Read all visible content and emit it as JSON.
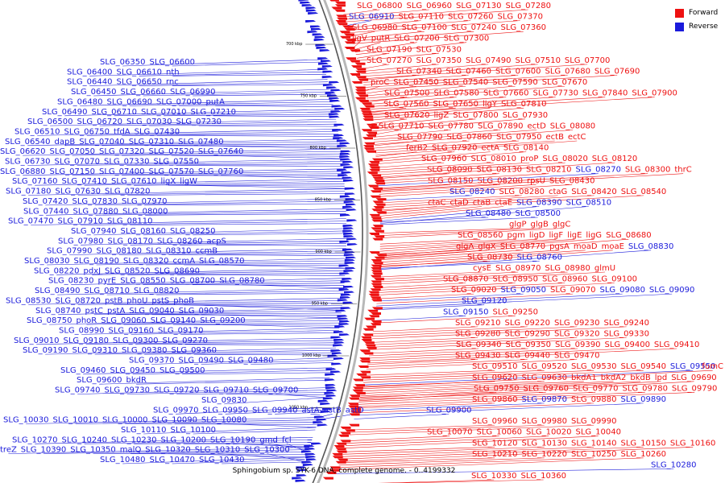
{
  "legend": {
    "forward_label": "Forward",
    "reverse_label": "Reverse",
    "forward_color": "#ee1111",
    "reverse_color": "#1a1adb"
  },
  "caption": "Sphingobium sp. SYK-6 DNA, complete genome. - 0..4199332",
  "ruler_ticks": [
    "700 kbp",
    "750 kbp",
    "800 kbp",
    "850 kbp",
    "900 kbp",
    "950 kbp",
    "1000 kbp",
    "1050 kbp"
  ],
  "left_rows": [
    [
      "SLG_06350",
      "SLG_06600"
    ],
    [
      "SLG_06400",
      "SLG_06610",
      "nth"
    ],
    [
      "SLG_06440",
      "SLG_06650",
      "rnc"
    ],
    [
      "SLG_06450",
      "SLG_06660",
      "SLG_06990"
    ],
    [
      "SLG_06480",
      "SLG_06690",
      "SLG_07000",
      "putA"
    ],
    [
      "SLG_06490",
      "SLG_06710",
      "SLG_07010",
      "SLG_07210"
    ],
    [
      "SLG_06500",
      "SLG_06720",
      "SLG_07030",
      "SLG_07230"
    ],
    [
      "SLG_06510",
      "SLG_06750",
      "tfdA",
      "SLG_07430"
    ],
    [
      "SLG_06540",
      "dapB",
      "SLG_07040",
      "SLG_07310",
      "SLG_07480"
    ],
    [
      "SLG_06620",
      "SLG_07050",
      "SLG_07320",
      "SLG_07520",
      "SLG_07640"
    ],
    [
      "SLG_06730",
      "SLG_07070",
      "SLG_07330",
      "SLG_07550"
    ],
    [
      "SLG_06880",
      "SLG_07150",
      "SLG_07400",
      "SLG_07570",
      "SLG_07760"
    ],
    [
      "SLG_07160",
      "SLG_07410",
      "SLG_07610",
      "ligX",
      "ligW"
    ],
    [
      "SLG_07180",
      "SLG_07630",
      "SLG_07820"
    ],
    [
      "SLG_07420",
      "SLG_07830",
      "SLG_07970"
    ],
    [
      "SLG_07440",
      "SLG_07880",
      "SLG_08000"
    ],
    [
      "SLG_07470",
      "SLG_07910",
      "SLG_08110"
    ],
    [
      "SLG_07940",
      "SLG_08160",
      "SLG_08250"
    ],
    [
      "SLG_07980",
      "SLG_08170",
      "SLG_08260",
      "acpS"
    ],
    [
      "SLG_07990",
      "SLG_08180",
      "SLG_08310",
      "ccmB"
    ],
    [
      "SLG_08030",
      "SLG_08190",
      "SLG_08320",
      "ccmA",
      "SLG_08570"
    ],
    [
      "SLG_08220",
      "pdxJ",
      "SLG_08520",
      "SLG_08690"
    ],
    [
      "SLG_08230",
      "pyrE",
      "SLG_08550",
      "SLG_08700",
      "SLG_08780"
    ],
    [
      "SLG_08490",
      "SLG_08710",
      "SLG_08820"
    ],
    [
      "SLG_08530",
      "SLG_08720",
      "pstB",
      "phoU",
      "pstS",
      "phoB"
    ],
    [
      "SLG_08740",
      "pstC",
      "pstA",
      "SLG_09040",
      "SLG_09030"
    ],
    [
      "SLG_08750",
      "phoR",
      "SLG_09060",
      "SLG_09140",
      "SLG_09200"
    ],
    [
      "SLG_08990",
      "SLG_09160",
      "SLG_09170"
    ],
    [
      "SLG_09010",
      "SLG_09180",
      "SLG_09300",
      "SLG_09270"
    ],
    [
      "SLG_09190",
      "SLG_09310",
      "SLG_09380",
      "SLG_09360"
    ],
    [
      "SLG_09370",
      "SLG_09490",
      "SLG_09480"
    ],
    [
      "SLG_09460",
      "SLG_09450",
      "SLG_09500"
    ],
    [
      "SLG_09600",
      "bkdR"
    ],
    [
      "SLG_09740",
      "SLG_09730",
      "SLG_09720",
      "SLG_09710",
      "SLG_09700"
    ],
    [
      "SLG_09830"
    ],
    [
      "SLG_09970",
      "SLG_09950",
      "SLG_09940",
      "astA",
      "astB",
      "astD"
    ],
    [
      "SLG_10030",
      "SLG_10010",
      "SLG_10000",
      "SLG_10090",
      "SLG_10080"
    ],
    [
      "SLG_10110",
      "SLG_10100"
    ],
    [
      "SLG_10270",
      "SLG_10240",
      "SLG_10230",
      "SLG_10200",
      "SLG_10190",
      "gmd",
      "fcl"
    ],
    [
      "treZ",
      "SLG_10390",
      "SLG_10350",
      "malQ",
      "SLG_10320",
      "SLG_10310",
      "SLG_10300"
    ],
    [
      "SLG_10480",
      "SLG_10470",
      "SLG_10430"
    ]
  ],
  "right_rows": [
    [
      "SLG_06800",
      "SLG_06960",
      "SLG_07130",
      "SLG_07280"
    ],
    [
      "SLG_06910",
      "SLG_07110",
      "SLG_07260",
      "SLG_07370"
    ],
    [
      "SLG_06980",
      "SLG_07100",
      "SLG_07240",
      "SLG_07360"
    ],
    [
      "ligV",
      "putR",
      "SLG_07200",
      "SLG_07300"
    ],
    [
      "SLG_07190",
      "SLG_07530"
    ],
    [
      "SLG_07270",
      "SLG_07350",
      "SLG_07490",
      "SLG_07510",
      "SLG_07700"
    ],
    [
      "SLG_07340",
      "SLG_07460",
      "SLG_07600",
      "SLG_07680",
      "SLG_07690"
    ],
    [
      "proC",
      "SLG_07450",
      "SLG_07540",
      "SLG_07590",
      "SLG_07670"
    ],
    [
      "SLG_07500",
      "SLG_07580",
      "SLG_07660",
      "SLG_07730",
      "SLG_07840",
      "SLG_07900"
    ],
    [
      "SLG_07560",
      "SLG_07650",
      "ligY",
      "SLG_07810"
    ],
    [
      "SLG_07620",
      "ligZ",
      "SLG_07800",
      "SLG_07930"
    ],
    [
      "SLG_07710",
      "SLG_07780",
      "SLG_07890",
      "ectD",
      "SLG_08080"
    ],
    [
      "SLG_07790",
      "SLG_07860",
      "SLG_07950",
      "ectB",
      "ectC"
    ],
    [
      "ferB2",
      "SLG_07920",
      "ectA",
      "SLG_08140"
    ],
    [
      "SLG_07960",
      "SLG_08010",
      "proP",
      "SLG_08020",
      "SLG_08120"
    ],
    [
      "SLG_08090",
      "SLG_08130",
      "SLG_08210",
      "SLG_08270",
      "SLG_08300",
      "thrC"
    ],
    [
      "SLG_08150",
      "SLG_08200",
      "rpsU",
      "SLG_08430"
    ],
    [
      "SLG_08240",
      "SLG_08280",
      "ctaG",
      "SLG_08420",
      "SLG_08540"
    ],
    [
      "ctaC",
      "ctaD",
      "ctaB",
      "ctaE",
      "SLG_08390",
      "SLG_08510"
    ],
    [
      "SLG_08480",
      "SLG_08500"
    ],
    [
      "glgP",
      "glgB",
      "glgC"
    ],
    [
      "SLG_08560",
      "pgm",
      "ligD",
      "ligF",
      "ligE",
      "ligG",
      "SLG_08680"
    ],
    [
      "glgA",
      "glgX",
      "SLG_08770",
      "pgsA",
      "moaD",
      "moaE",
      "SLG_08830"
    ],
    [
      "SLG_08730",
      "SLG_08760"
    ],
    [
      "cysE",
      "SLG_08970",
      "SLG_08980",
      "glmU"
    ],
    [
      "SLG_08870",
      "SLG_08950",
      "SLG_08960",
      "SLG_09100"
    ],
    [
      "SLG_09020",
      "SLG_09050",
      "SLG_09070",
      "SLG_09080",
      "SLG_09090"
    ],
    [
      "SLG_09120"
    ],
    [
      "SLG_09150",
      "SLG_09250"
    ],
    [
      "SLG_09210",
      "SLG_09220",
      "SLG_09230",
      "SLG_09240"
    ],
    [
      "SLG_09280",
      "SLG_09290",
      "SLG_09320",
      "SLG_09330"
    ],
    [
      "SLG_09340",
      "SLG_09350",
      "SLG_09390",
      "SLG_09400",
      "SLG_09410"
    ],
    [
      "SLG_09430",
      "SLG_09440",
      "SLG_09470"
    ],
    [
      "SLG_09510",
      "SLG_09520",
      "SLG_09530",
      "SLG_09540",
      "SLG_09550",
      "fumC"
    ],
    [
      "SLG_09620",
      "SLG_09630",
      "bkdA1",
      "bkdA2",
      "bkdB",
      "lpd",
      "SLG_09690"
    ],
    [
      "SLG_09750",
      "SLG_09760",
      "SLG_09770",
      "SLG_09780",
      "SLG_09790"
    ],
    [
      "SLG_09860",
      "SLG_09870",
      "SLG_09880",
      "SLG_09890"
    ],
    [
      "SLG_09900"
    ],
    [
      "SLG_09960",
      "SLG_09980",
      "SLG_09990"
    ],
    [
      "SLG_10070",
      "SLG_10060",
      "SLG_10020",
      "SLG_10040"
    ],
    [
      "SLG_10120",
      "SLG_10130",
      "SLG_10140",
      "SLG_10150",
      "SLG_10160"
    ],
    [
      "SLG_10210",
      "SLG_10220",
      "SLG_10250",
      "SLG_10260"
    ],
    [
      "SLG_10280"
    ],
    [
      "SLG_10330",
      "SLG_10360"
    ]
  ],
  "right_reverse_labels": [
    "SLG_06910",
    "SLG_08270",
    "SLG_08240",
    "SLG_08390",
    "SLG_08510",
    "SLG_08830",
    "SLG_08760",
    "SLG_09050",
    "SLG_09080",
    "SLG_09090",
    "SLG_09120",
    "SLG_09150",
    "SLG_09550",
    "SLG_09900",
    "SLG_09870",
    "SLG_09890",
    "SLG_10280",
    "SLG_08500",
    "SLG_08480"
  ]
}
